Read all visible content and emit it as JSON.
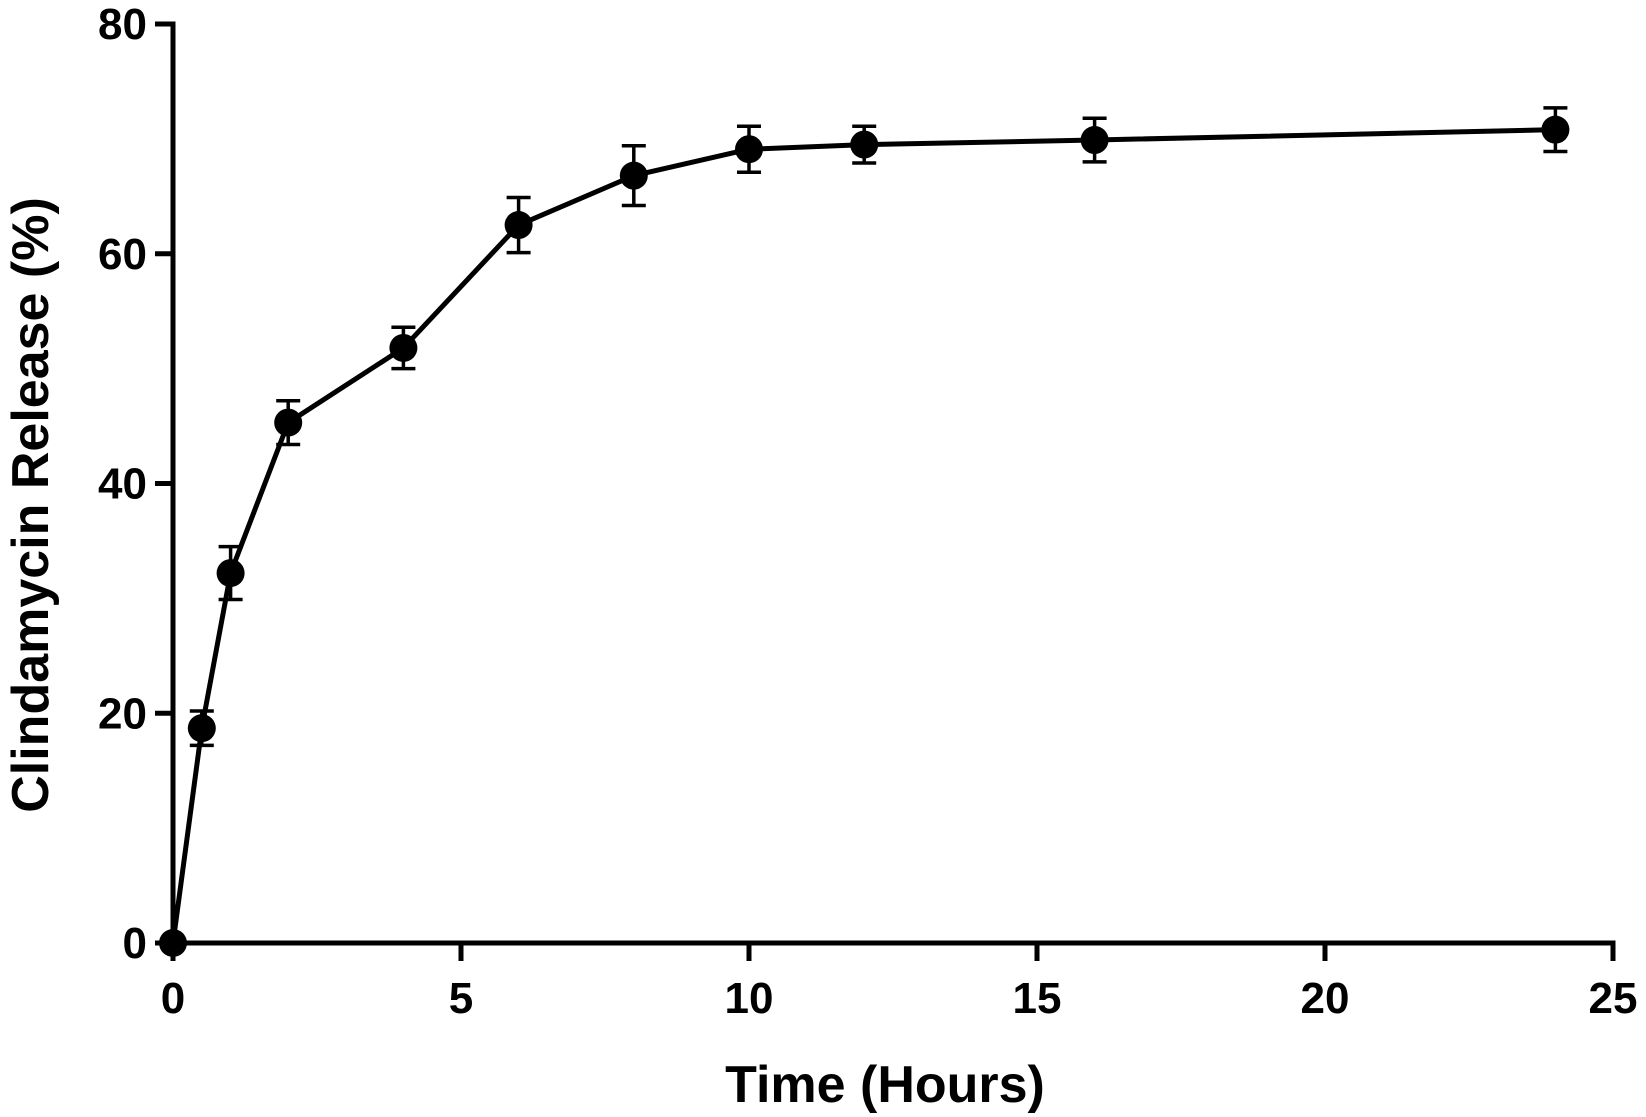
{
  "chart_data": {
    "type": "line",
    "title": "",
    "xlabel": "Time (Hours)",
    "ylabel": "Clindamycin Release (%)",
    "xlim": [
      0,
      25
    ],
    "ylim": [
      0,
      80
    ],
    "xticks": [
      0,
      5,
      10,
      15,
      20,
      25
    ],
    "yticks": [
      0,
      20,
      40,
      60,
      80
    ],
    "grid": false,
    "legend": "none",
    "color": "#000000",
    "series": [
      {
        "x": [
          0,
          0.5,
          1,
          2,
          4,
          6,
          8,
          10,
          12,
          16,
          24
        ],
        "y": [
          0,
          18.7,
          32.2,
          45.3,
          51.8,
          62.5,
          66.8,
          69.1,
          69.5,
          69.9,
          70.8
        ],
        "error": [
          0,
          1.5,
          2.3,
          1.9,
          1.8,
          2.4,
          2.6,
          2.0,
          1.6,
          1.9,
          1.9
        ]
      }
    ]
  }
}
